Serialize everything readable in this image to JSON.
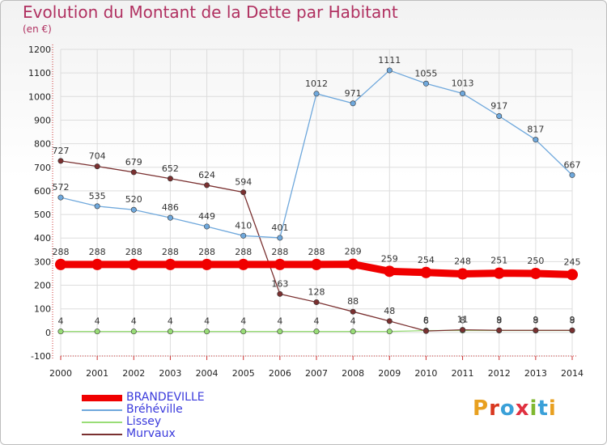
{
  "title": "Evolution du Montant de la Dette par Habitant",
  "subtitle": "(en €)",
  "logo": {
    "text": "Proxiti",
    "colors": [
      "#e8a020",
      "#d83820",
      "#3aa0d8",
      "#e03040",
      "#80b830",
      "#3aa0d8",
      "#e8a020"
    ]
  },
  "chart_data": {
    "type": "line",
    "title": "Evolution du Montant de la Dette par Habitant",
    "subtitle": "(en €)",
    "xlabel": "",
    "ylabel": "",
    "x": [
      "2000",
      "2001",
      "2002",
      "2003",
      "2004",
      "2005",
      "2006",
      "2007",
      "2008",
      "2009",
      "2010",
      "2011",
      "2012",
      "2013",
      "2014"
    ],
    "ylim": [
      -100,
      1200
    ],
    "yticks": [
      "-100",
      "0",
      "100",
      "200",
      "300",
      "400",
      "500",
      "600",
      "700",
      "800",
      "900",
      "1000",
      "1100",
      "1200"
    ],
    "grid": true,
    "legend_position": "bottom-left",
    "series": [
      {
        "name": "BRANDEVILLE",
        "color": "#f00000",
        "values": [
          288,
          288,
          288,
          288,
          288,
          288,
          288,
          288,
          289,
          259,
          254,
          248,
          251,
          250,
          245
        ],
        "labels": [
          "288",
          "288",
          "288",
          "288",
          "288",
          "288",
          "288",
          "288",
          "289",
          "259",
          "254",
          "248",
          "251",
          "250",
          "245"
        ]
      },
      {
        "name": "Bréhéville",
        "color": "#6fa8dc",
        "values": [
          572,
          535,
          520,
          486,
          449,
          410,
          401,
          1012,
          971,
          1111,
          1055,
          1013,
          917,
          817,
          667
        ],
        "labels": [
          "572",
          "535",
          "520",
          "486",
          "449",
          "410",
          "401",
          "1012",
          "971",
          "1111",
          "1055",
          "1013",
          "917",
          "817",
          "667"
        ]
      },
      {
        "name": "Lissey",
        "color": "#99dd77",
        "values": [
          4,
          4,
          4,
          4,
          4,
          4,
          4,
          4,
          4,
          4,
          8,
          8,
          8,
          8,
          8
        ],
        "labels": [
          "4",
          "4",
          "4",
          "4",
          "4",
          "4",
          "4",
          "4",
          "4",
          "",
          "8",
          "8",
          "8",
          "8",
          "8"
        ]
      },
      {
        "name": "Murvaux",
        "color": "#7a3030",
        "values": [
          727,
          704,
          679,
          652,
          624,
          594,
          163,
          128,
          88,
          48,
          6,
          11,
          9,
          9,
          9
        ],
        "labels": [
          "727",
          "704",
          "679",
          "652",
          "624",
          "594",
          "163",
          "128",
          "88",
          "48",
          "6",
          "11",
          "9",
          "9",
          "9"
        ]
      }
    ]
  }
}
